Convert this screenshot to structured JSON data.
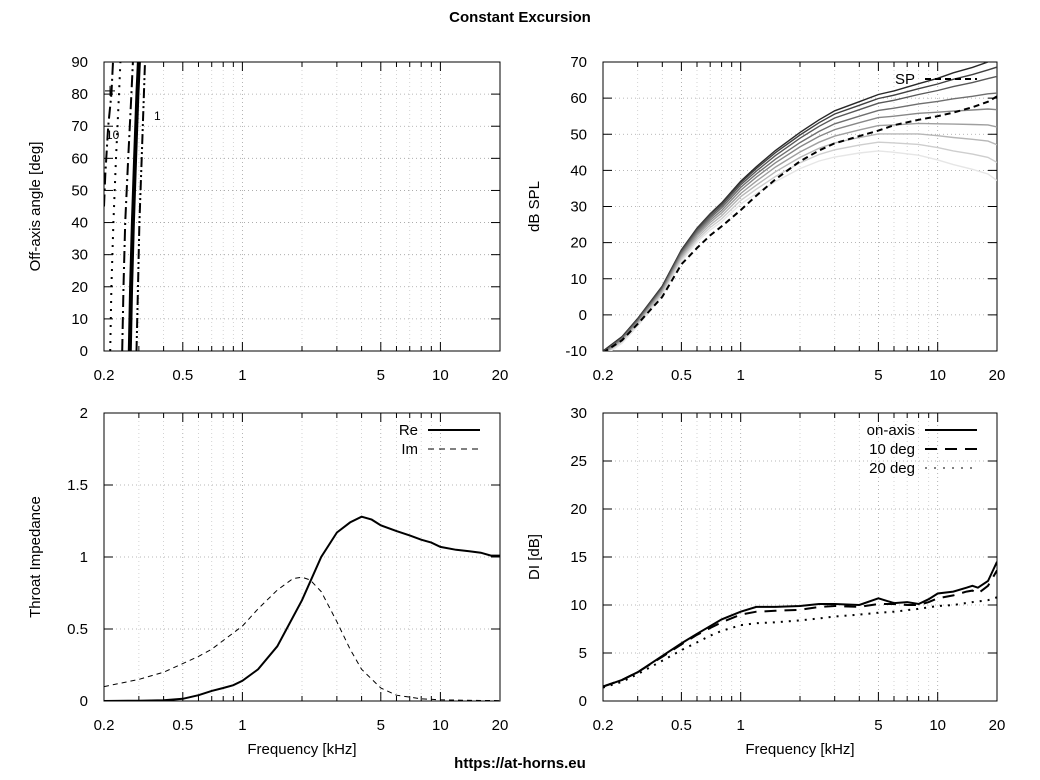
{
  "title": "Constant Excursion",
  "footer": "https://at-horns.eu",
  "chart_data": [
    {
      "id": "polar_map",
      "type": "contour",
      "xlabel": "",
      "ylabel": "Off-axis angle [deg]",
      "xscale": "log",
      "xlim": [
        0.2,
        20
      ],
      "ylim": [
        0,
        90
      ],
      "xticks": [
        "0.2",
        "0.5",
        "1",
        "5",
        "10",
        "20"
      ],
      "yticks": [
        "0",
        "10",
        "20",
        "30",
        "40",
        "50",
        "60",
        "70",
        "80",
        "90"
      ],
      "grid": true,
      "annotations": [
        "10",
        "1"
      ],
      "contours": [
        {
          "style": "dotted",
          "points": [
            [
              0.215,
              0
            ],
            [
              0.218,
              20
            ],
            [
              0.223,
              40
            ],
            [
              0.23,
              60
            ],
            [
              0.238,
              80
            ],
            [
              0.242,
              90
            ]
          ]
        },
        {
          "style": "dash-dot",
          "points": [
            [
              0.247,
              0
            ],
            [
              0.251,
              20
            ],
            [
              0.256,
              40
            ],
            [
              0.265,
              60
            ],
            [
              0.275,
              80
            ],
            [
              0.28,
              90
            ]
          ]
        },
        {
          "style": "solid-thick",
          "points": [
            [
              0.27,
              0
            ],
            [
              0.274,
              20
            ],
            [
              0.28,
              40
            ],
            [
              0.287,
              60
            ],
            [
              0.295,
              80
            ],
            [
              0.3,
              90
            ]
          ]
        },
        {
          "style": "dash-dot-dot",
          "points": [
            [
              0.292,
              0
            ],
            [
              0.297,
              20
            ],
            [
              0.302,
              40
            ],
            [
              0.31,
              60
            ],
            [
              0.318,
              80
            ],
            [
              0.322,
              90
            ]
          ]
        },
        {
          "style": "dash-dot",
          "points": [
            [
              0.2,
              45
            ],
            [
              0.203,
              55
            ],
            [
              0.21,
              70
            ],
            [
              0.218,
              80
            ],
            [
              0.222,
              90
            ]
          ]
        }
      ]
    },
    {
      "id": "spl_curves",
      "type": "line",
      "xlabel": "",
      "ylabel": "dB SPL",
      "xscale": "log",
      "xlim": [
        0.2,
        20
      ],
      "ylim": [
        -10,
        70
      ],
      "xticks": [
        "0.2",
        "0.5",
        "1",
        "5",
        "10",
        "20"
      ],
      "yticks": [
        "-10",
        "0",
        "10",
        "20",
        "30",
        "40",
        "50",
        "60",
        "70"
      ],
      "grid": true,
      "legend": "top-right",
      "x": [
        0.2,
        0.25,
        0.3,
        0.4,
        0.5,
        0.6,
        0.7,
        0.8,
        1.0,
        1.2,
        1.5,
        2.0,
        2.5,
        3.0,
        4.0,
        5.0,
        6.0,
        8.0,
        10.0,
        12.0,
        15.0,
        18.0,
        20.0
      ],
      "family_base": [
        -10,
        -6,
        -1,
        8,
        18,
        24,
        28,
        31,
        37,
        41,
        45.5,
        50.5,
        54,
        56.5,
        59,
        61,
        62,
        64,
        65.5,
        67,
        68.5,
        70,
        71
      ],
      "family_rolloff": [
        [
          0,
          0,
          0,
          0,
          0,
          0,
          0,
          0,
          0,
          0,
          0,
          0,
          0,
          0,
          0,
          0,
          0,
          0,
          0,
          0,
          0,
          0,
          0
        ],
        [
          0,
          0,
          0,
          0,
          0,
          0,
          0,
          0.1,
          0.2,
          0.3,
          0.4,
          0.5,
          0.6,
          0.7,
          0.8,
          0.9,
          1.0,
          1.2,
          1.4,
          1.6,
          1.8,
          2.0,
          2.2
        ],
        [
          0,
          0,
          0,
          0.1,
          0.1,
          0.2,
          0.3,
          0.4,
          0.6,
          0.8,
          1.0,
          1.2,
          1.4,
          1.6,
          1.8,
          2.0,
          2.2,
          2.6,
          3.0,
          3.4,
          3.8,
          4.2,
          4.6
        ],
        [
          0,
          0,
          0.1,
          0.2,
          0.3,
          0.4,
          0.6,
          0.8,
          1.1,
          1.4,
          1.8,
          2.2,
          2.6,
          3.0,
          3.4,
          3.8,
          4.2,
          5.0,
          5.8,
          6.6,
          7.4,
          8.2,
          9.0
        ],
        [
          0,
          0.1,
          0.2,
          0.3,
          0.5,
          0.7,
          1.0,
          1.3,
          1.7,
          2.1,
          2.6,
          3.2,
          3.8,
          4.4,
          5.0,
          5.6,
          6.2,
          7.4,
          8.6,
          9.8,
          11.0,
          12.2,
          13.4
        ],
        [
          0,
          0.1,
          0.2,
          0.4,
          0.7,
          1.0,
          1.4,
          1.8,
          2.4,
          3.0,
          3.6,
          4.4,
          5.2,
          6.0,
          6.8,
          7.6,
          8.4,
          10.0,
          11.6,
          13.2,
          14.8,
          16.4,
          18.0
        ],
        [
          0,
          0.1,
          0.3,
          0.6,
          1.0,
          1.4,
          1.9,
          2.4,
          3.1,
          3.9,
          4.7,
          5.7,
          6.7,
          7.7,
          8.7,
          9.7,
          10.7,
          12.7,
          14.7,
          16.7,
          18.7,
          20.7,
          22.7
        ],
        [
          0,
          0.2,
          0.4,
          0.8,
          1.3,
          1.8,
          2.4,
          3.0,
          3.9,
          4.8,
          5.8,
          7.0,
          8.2,
          9.4,
          10.6,
          11.8,
          13.0,
          15.4,
          17.8,
          20.2,
          22.6,
          25.0,
          27.4
        ],
        [
          0,
          0.2,
          0.5,
          1.0,
          1.6,
          2.2,
          2.9,
          3.6,
          4.7,
          5.8,
          7.0,
          8.4,
          9.8,
          11.2,
          12.6,
          14.0,
          15.4,
          18.2,
          21.0,
          23.8,
          26.6,
          29.4,
          32.2
        ]
      ],
      "series": [
        {
          "name": "SP",
          "style": "dashed",
          "values": [
            -10.5,
            -7,
            -2.5,
            5,
            14,
            18.5,
            22,
            24.5,
            29,
            33,
            37.5,
            42.5,
            45.5,
            47.5,
            49.5,
            51,
            52.5,
            54,
            55,
            56,
            57.5,
            59,
            60.5
          ]
        }
      ]
    },
    {
      "id": "throat_impedance",
      "type": "line",
      "xlabel": "Frequency [kHz]",
      "ylabel": "Throat Impedance",
      "xscale": "log",
      "xlim": [
        0.2,
        20
      ],
      "ylim": [
        0,
        2
      ],
      "xticks": [
        "0.2",
        "0.5",
        "1",
        "5",
        "10",
        "20"
      ],
      "yticks": [
        "0",
        "0.5",
        "1",
        "1.5",
        "2"
      ],
      "grid": true,
      "legend": "top-right",
      "series": [
        {
          "name": "Re",
          "style": "solid",
          "x": [
            0.2,
            0.3,
            0.4,
            0.5,
            0.6,
            0.7,
            0.8,
            0.9,
            1.0,
            1.2,
            1.5,
            2.0,
            2.5,
            3.0,
            3.5,
            4.0,
            4.5,
            5.0,
            6.0,
            7.0,
            8.0,
            9.0,
            10.0,
            12.0,
            14.0,
            16.0,
            18.0,
            20.0
          ],
          "values": [
            0.0,
            0.002,
            0.005,
            0.015,
            0.04,
            0.07,
            0.09,
            0.11,
            0.14,
            0.22,
            0.38,
            0.7,
            1.0,
            1.17,
            1.24,
            1.28,
            1.26,
            1.22,
            1.18,
            1.15,
            1.12,
            1.1,
            1.07,
            1.05,
            1.04,
            1.03,
            1.01,
            1.01
          ]
        },
        {
          "name": "Im",
          "style": "dashed",
          "x": [
            0.2,
            0.3,
            0.4,
            0.5,
            0.6,
            0.7,
            0.8,
            1.0,
            1.2,
            1.5,
            1.8,
            2.0,
            2.2,
            2.5,
            3.0,
            3.5,
            4.0,
            5.0,
            6.0,
            8.0,
            10.0,
            15.0,
            20.0
          ],
          "values": [
            0.1,
            0.15,
            0.2,
            0.26,
            0.31,
            0.36,
            0.42,
            0.52,
            0.64,
            0.77,
            0.85,
            0.86,
            0.84,
            0.76,
            0.55,
            0.36,
            0.22,
            0.09,
            0.04,
            0.015,
            0.008,
            0.004,
            0.003
          ]
        }
      ]
    },
    {
      "id": "directivity_index",
      "type": "line",
      "xlabel": "Frequency [kHz]",
      "ylabel": "DI [dB]",
      "xscale": "log",
      "xlim": [
        0.2,
        20
      ],
      "ylim": [
        0,
        30
      ],
      "xticks": [
        "0.2",
        "0.5",
        "1",
        "5",
        "10",
        "20"
      ],
      "yticks": [
        "0",
        "5",
        "10",
        "15",
        "20",
        "25",
        "30"
      ],
      "grid": true,
      "legend": "top-right",
      "series": [
        {
          "name": "on-axis",
          "style": "solid",
          "x": [
            0.2,
            0.25,
            0.3,
            0.4,
            0.5,
            0.6,
            0.7,
            0.8,
            1.0,
            1.2,
            1.5,
            2.0,
            2.5,
            3.0,
            4.0,
            5.0,
            6.0,
            7.0,
            8.0,
            9.0,
            10.0,
            12.0,
            14.0,
            15.0,
            16.0,
            18.0,
            20.0
          ],
          "values": [
            1.5,
            2.2,
            3.0,
            4.7,
            6.0,
            7.0,
            7.8,
            8.5,
            9.3,
            9.8,
            9.8,
            9.9,
            10.1,
            10.1,
            10.0,
            10.7,
            10.2,
            10.3,
            10.1,
            10.6,
            11.2,
            11.4,
            11.8,
            12.0,
            11.8,
            12.5,
            14.5
          ]
        },
        {
          "name": "10 deg",
          "style": "dashed",
          "x": [
            0.2,
            0.25,
            0.3,
            0.4,
            0.5,
            0.6,
            0.7,
            0.8,
            1.0,
            1.2,
            1.5,
            2.0,
            2.5,
            3.0,
            4.0,
            5.0,
            6.0,
            7.0,
            8.0,
            9.0,
            10.0,
            12.0,
            14.0,
            15.0,
            16.0,
            18.0,
            20.0
          ],
          "values": [
            1.5,
            2.2,
            3.0,
            4.6,
            5.9,
            6.9,
            7.6,
            8.2,
            9.0,
            9.3,
            9.4,
            9.5,
            9.8,
            9.9,
            9.8,
            10.1,
            10.1,
            10.0,
            10.0,
            10.3,
            10.7,
            11.0,
            11.4,
            11.5,
            11.2,
            12.0,
            13.6
          ]
        },
        {
          "name": "20 deg",
          "style": "dotted",
          "x": [
            0.2,
            0.25,
            0.3,
            0.4,
            0.5,
            0.6,
            0.7,
            0.8,
            1.0,
            1.2,
            1.5,
            2.0,
            2.5,
            3.0,
            4.0,
            5.0,
            6.0,
            8.0,
            10.0,
            12.0,
            15.0,
            18.0,
            20.0
          ],
          "values": [
            1.4,
            2.0,
            2.8,
            4.2,
            5.3,
            6.1,
            6.8,
            7.3,
            7.9,
            8.1,
            8.2,
            8.4,
            8.6,
            8.8,
            9.0,
            9.2,
            9.3,
            9.6,
            9.9,
            10.0,
            10.3,
            10.5,
            10.8
          ]
        }
      ]
    }
  ]
}
